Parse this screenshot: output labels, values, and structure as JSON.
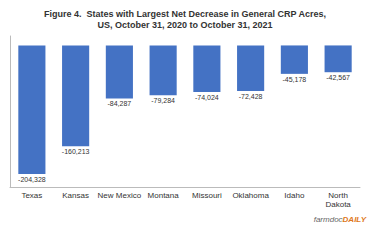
{
  "chart_data": {
    "type": "bar",
    "title": "Figure 4.  States with Largest Net Decrease in General CRP Acres,\nUS, October 31, 2020 to October 31, 2021",
    "categories": [
      "Texas",
      "Kansas",
      "New Mexico",
      "Montana",
      "Missouri",
      "Oklahoma",
      "Idaho",
      "North\nDakota"
    ],
    "values": [
      -204328,
      -160213,
      -84287,
      -79284,
      -74024,
      -72428,
      -45178,
      -42567
    ],
    "value_labels": [
      "-204,328",
      "-160,213",
      "-84,287",
      "-79,284",
      "-74,024",
      "-72,428",
      "-45,178",
      "-42,567"
    ],
    "color": "#4472C4",
    "ylim": [
      -225000,
      15000
    ],
    "grid": false,
    "data_labels": true,
    "tick_labels": "x",
    "annotations": [
      {
        "text": "farmdoc",
        "color": "#666666"
      },
      {
        "text": "DAILY",
        "color": "#E07820"
      }
    ]
  }
}
